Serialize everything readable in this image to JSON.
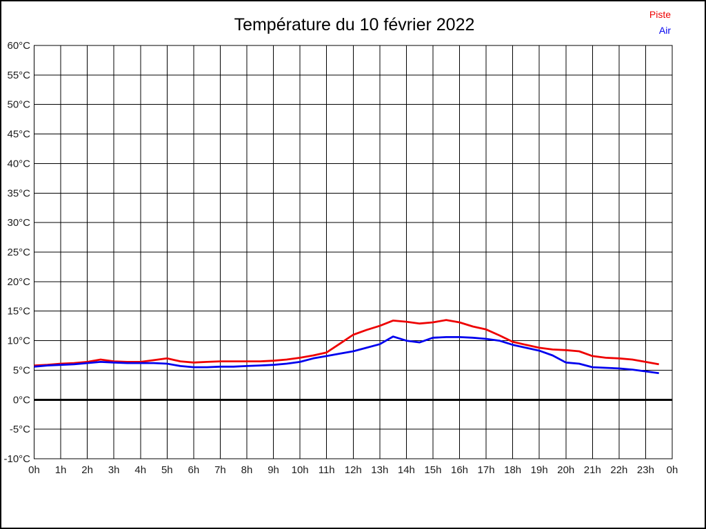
{
  "title": "Température du 10 février 2022",
  "legend": {
    "position": "top-right",
    "items": [
      {
        "label": "Piste",
        "color": "#ee0000"
      },
      {
        "label": "Air",
        "color": "#0000ee"
      }
    ]
  },
  "colors": {
    "grid": "#000000",
    "axis_frame": "#000000",
    "zero_line": "#000000",
    "background": "#ffffff",
    "tick_text": "#1c1c1c",
    "title_text": "#000000"
  },
  "chart_data": {
    "type": "line",
    "title": "Température du 10 février 2022",
    "xlabel": "",
    "ylabel": "",
    "x_unit": "hour of day",
    "y_unit": "°C",
    "xlim": [
      0,
      24
    ],
    "ylim": [
      -10,
      60
    ],
    "y_tick_step": 5,
    "x_tick_step_hours": 1,
    "grid": true,
    "zero_line_bold": true,
    "legend_position": "top-right",
    "x_tick_labels": [
      "0h",
      "1h",
      "2h",
      "3h",
      "4h",
      "5h",
      "6h",
      "7h",
      "8h",
      "9h",
      "10h",
      "11h",
      "12h",
      "13h",
      "14h",
      "15h",
      "16h",
      "17h",
      "18h",
      "19h",
      "20h",
      "21h",
      "22h",
      "23h",
      "0h"
    ],
    "y_tick_labels": [
      "60°C",
      "55°C",
      "50°C",
      "45°C",
      "40°C",
      "35°C",
      "30°C",
      "25°C",
      "20°C",
      "15°C",
      "10°C",
      "5°C",
      "0°C",
      "-5°C",
      "-10°C"
    ],
    "x": [
      0,
      0.5,
      1,
      1.5,
      2,
      2.5,
      3,
      3.5,
      4,
      4.5,
      5,
      5.5,
      6,
      6.5,
      7,
      7.5,
      8,
      8.5,
      9,
      9.5,
      10,
      10.5,
      11,
      11.5,
      12,
      12.5,
      13,
      13.5,
      14,
      14.5,
      15,
      15.5,
      16,
      16.5,
      17,
      17.5,
      18,
      18.5,
      19,
      19.5,
      20,
      20.5,
      21,
      21.5,
      22,
      22.5,
      23,
      23.5
    ],
    "series": [
      {
        "name": "Piste",
        "color": "#ee0000",
        "values": [
          5.8,
          5.9,
          6.1,
          6.2,
          6.4,
          6.8,
          6.5,
          6.4,
          6.4,
          6.7,
          7.0,
          6.5,
          6.3,
          6.4,
          6.5,
          6.5,
          6.5,
          6.5,
          6.6,
          6.8,
          7.1,
          7.5,
          8.0,
          9.5,
          11.0,
          11.8,
          12.5,
          13.4,
          13.2,
          12.9,
          13.1,
          13.5,
          13.1,
          12.4,
          11.9,
          10.9,
          9.8,
          9.3,
          8.8,
          8.5,
          8.4,
          8.2,
          7.4,
          7.1,
          7.0,
          6.8,
          6.4,
          6.0
        ]
      },
      {
        "name": "Air",
        "color": "#0000ee",
        "values": [
          5.6,
          5.8,
          5.9,
          6.0,
          6.2,
          6.4,
          6.3,
          6.2,
          6.2,
          6.2,
          6.1,
          5.7,
          5.5,
          5.5,
          5.6,
          5.6,
          5.7,
          5.8,
          5.9,
          6.1,
          6.4,
          7.0,
          7.4,
          7.8,
          8.2,
          8.8,
          9.4,
          10.7,
          10.0,
          9.7,
          10.5,
          10.6,
          10.6,
          10.5,
          10.3,
          10.0,
          9.3,
          8.8,
          8.3,
          7.5,
          6.3,
          6.1,
          5.5,
          5.4,
          5.3,
          5.1,
          4.8,
          4.5
        ]
      }
    ]
  }
}
